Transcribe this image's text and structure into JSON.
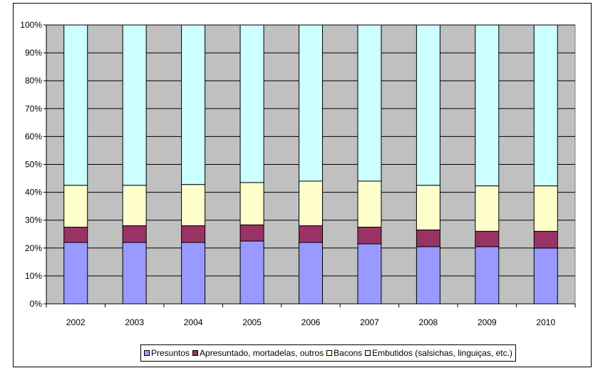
{
  "chart_data": {
    "type": "bar",
    "stacked": true,
    "normalized": true,
    "categories": [
      "2002",
      "2003",
      "2004",
      "2005",
      "2006",
      "2007",
      "2008",
      "2009",
      "2010"
    ],
    "series": [
      {
        "name": "Presuntos",
        "color": "#9999FF",
        "values": [
          22,
          22,
          22,
          22.5,
          22,
          21.5,
          20.5,
          20.5,
          20
        ]
      },
      {
        "name": "Apresuntado, mortadelas, outros",
        "color": "#993366",
        "values": [
          5.5,
          6,
          6,
          5.8,
          6,
          6,
          6,
          5.5,
          6
        ]
      },
      {
        "name": "Bacons",
        "color": "#FFFFCC",
        "values": [
          15,
          14.5,
          14.8,
          15.2,
          16,
          16.5,
          16,
          16.3,
          16.3
        ]
      },
      {
        "name": "Embutidos (salsichas, linguiças, etc.)",
        "color": "#CCFFFF",
        "values": [
          57.5,
          57.5,
          57.2,
          56.5,
          56,
          56,
          57.5,
          57.7,
          57.7
        ]
      }
    ],
    "yticks": [
      "0%",
      "10%",
      "20%",
      "30%",
      "40%",
      "50%",
      "60%",
      "70%",
      "80%",
      "90%",
      "100%"
    ],
    "ylim": [
      0,
      100
    ],
    "title": "",
    "xlabel": "",
    "ylabel": "",
    "grid": true,
    "plot_background": "#C0C0C0",
    "legend_position": "bottom"
  }
}
